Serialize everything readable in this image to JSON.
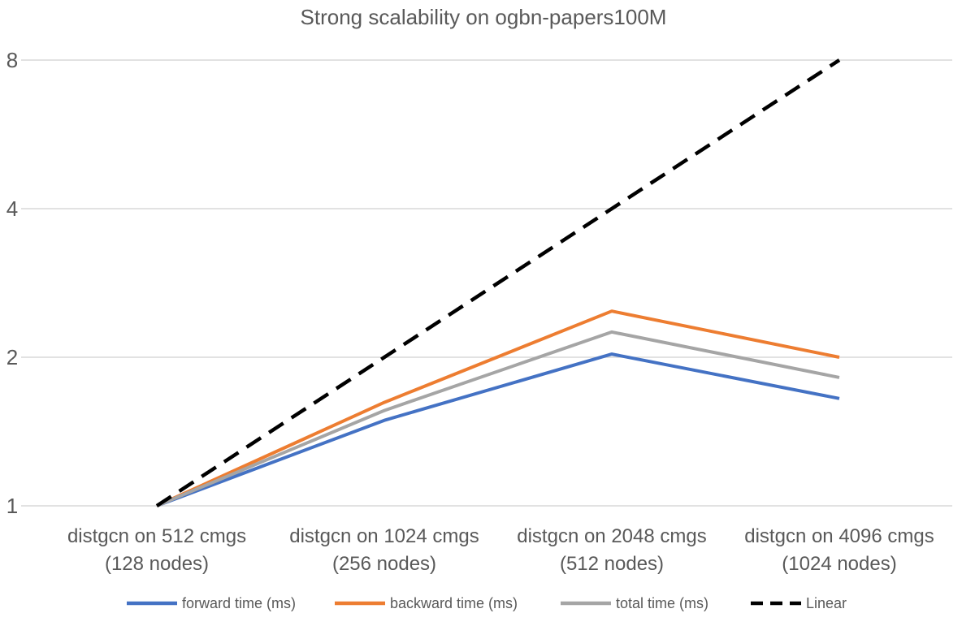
{
  "chart_data": {
    "type": "line",
    "title": "Strong scalability on ogbn-papers100M",
    "xlabel": "",
    "ylabel": "",
    "yscale": "log2",
    "ylim": [
      1,
      8
    ],
    "yticks": [
      "1",
      "2",
      "4",
      "8"
    ],
    "grid": true,
    "legend_position": "bottom",
    "categories": [
      [
        "distgcn on 512 cmgs",
        "(128 nodes)"
      ],
      [
        "distgcn on 1024 cmgs",
        "(256 nodes)"
      ],
      [
        "distgcn on 2048 cmgs",
        "(512 nodes)"
      ],
      [
        "distgcn on 4096 cmgs",
        "(1024 nodes)"
      ]
    ],
    "series": [
      {
        "name": "forward time (ms)",
        "color": "#4472c4",
        "dash": "solid",
        "values": [
          1.0,
          1.49,
          2.03,
          1.65
        ]
      },
      {
        "name": "backward time (ms)",
        "color": "#ed7d31",
        "dash": "solid",
        "values": [
          1.0,
          1.62,
          2.48,
          2.0
        ]
      },
      {
        "name": "total time (ms)",
        "color": "#a5a5a5",
        "dash": "solid",
        "values": [
          1.0,
          1.56,
          2.25,
          1.82
        ]
      },
      {
        "name": "Linear",
        "color": "#000000",
        "dash": "dashed",
        "values": [
          1,
          2,
          4,
          8
        ]
      }
    ]
  }
}
